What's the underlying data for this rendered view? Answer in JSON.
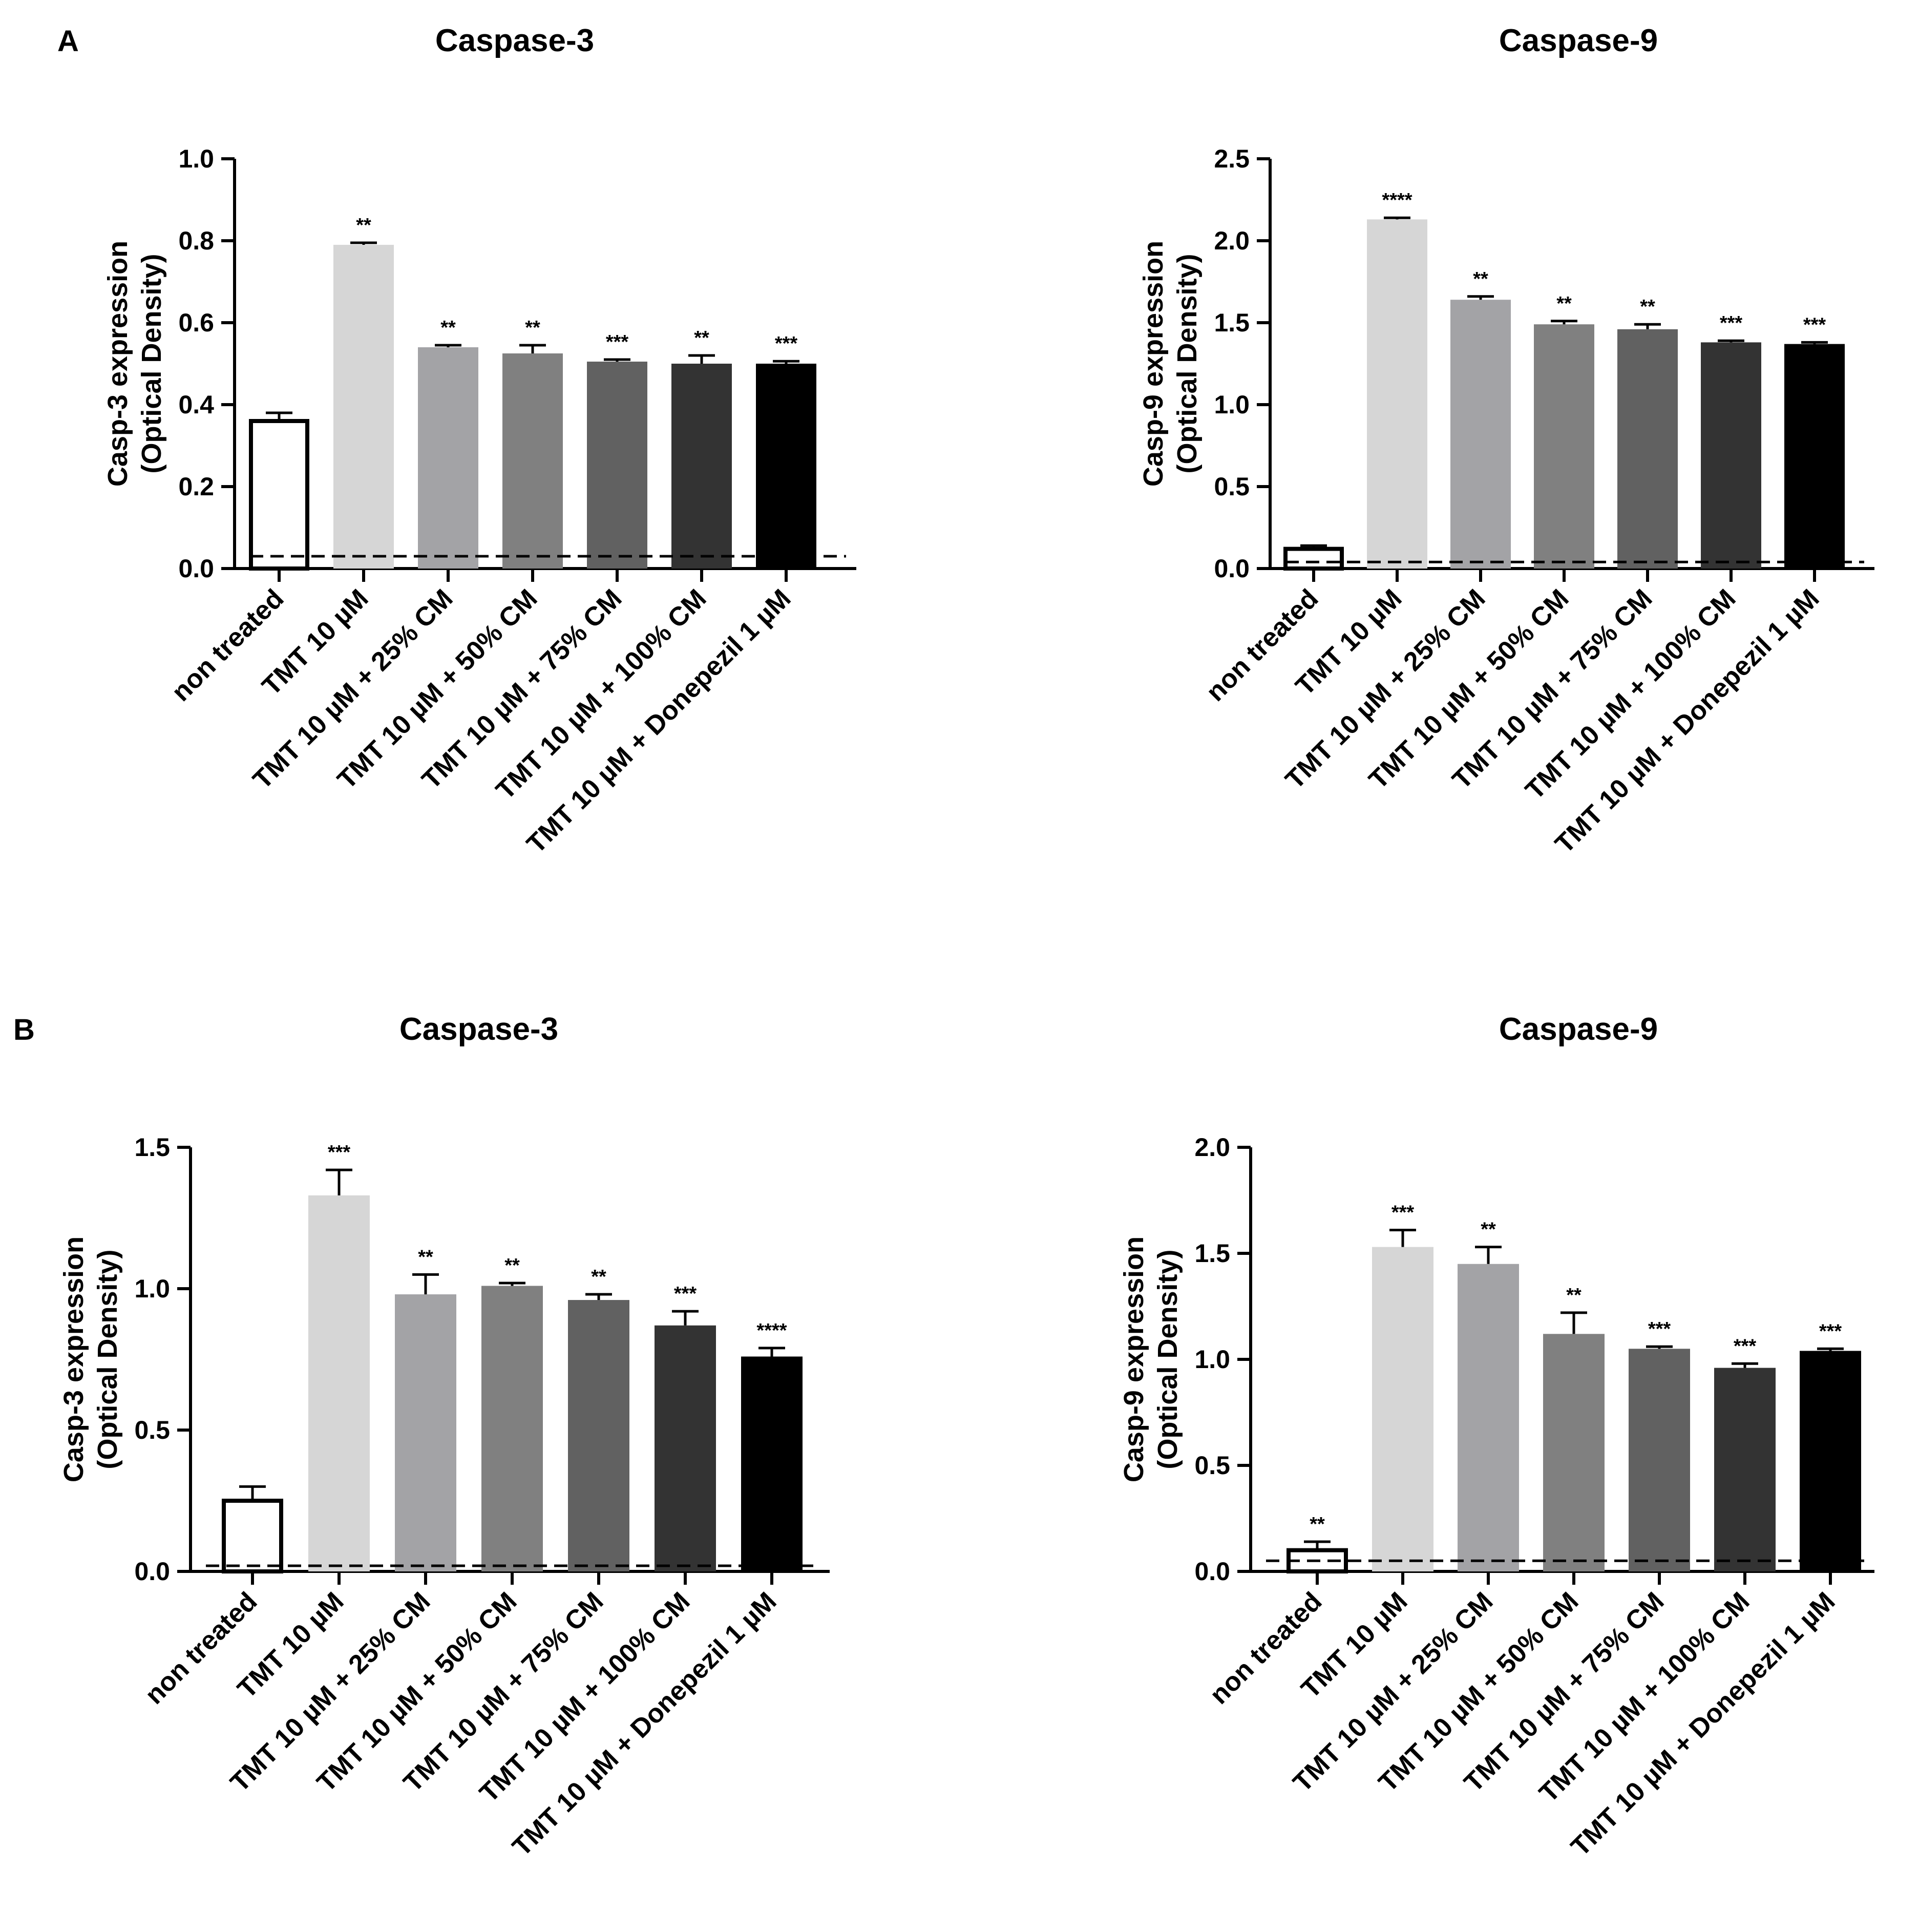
{
  "panels": {
    "a": "A",
    "b": "B"
  },
  "colors": {
    "bars": [
      "#ffffff",
      "#d6d6d6",
      "#a3a3a6",
      "#808080",
      "#616161",
      "#333333",
      "#000000"
    ],
    "axis": "#000000"
  },
  "chart_data": [
    {
      "type": "bar",
      "panel": "A",
      "title": "Caspase-3",
      "ylabel": [
        "Casp-3 expression",
        "(Optical Density)"
      ],
      "categories": [
        "non treated",
        "TMT 10 µM",
        "TMT 10 µM + 25% CM",
        "TMT 10 µM + 50% CM",
        "TMT 10 µM + 75% CM",
        "TMT 10 µM + 100% CM",
        "TMT 10 µM + Donepezil 1 µM"
      ],
      "values": [
        0.36,
        0.79,
        0.54,
        0.525,
        0.505,
        0.5,
        0.5
      ],
      "errors": [
        0.02,
        0.005,
        0.005,
        0.02,
        0.005,
        0.02,
        0.006
      ],
      "significance": [
        "",
        "**",
        "**",
        "**",
        "***",
        "**",
        "***"
      ],
      "ylim": [
        0,
        1.0
      ],
      "yticks": [
        0.0,
        0.2,
        0.4,
        0.6,
        0.8,
        1.0
      ],
      "ytick_labels": [
        "0.0",
        "0.2",
        "0.4",
        "0.6",
        "0.8",
        "1.0"
      ],
      "baseline": 0.03
    },
    {
      "type": "bar",
      "panel": "A",
      "title": "Caspase-9",
      "ylabel": [
        "Casp-9 expression",
        "(Optical Density)"
      ],
      "categories": [
        "non treated",
        "TMT 10 µM",
        "TMT 10 µM + 25% CM",
        "TMT 10 µM + 50% CM",
        "TMT 10 µM + 75% CM",
        "TMT 10 µM + 100% CM",
        "TMT 10 µM + Donepezil 1 µM"
      ],
      "values": [
        0.12,
        2.13,
        1.64,
        1.49,
        1.46,
        1.38,
        1.37
      ],
      "errors": [
        0.02,
        0.01,
        0.02,
        0.02,
        0.03,
        0.01,
        0.01
      ],
      "significance": [
        "",
        "****",
        "**",
        "**",
        "**",
        "***",
        "***"
      ],
      "ylim": [
        0,
        2.5
      ],
      "yticks": [
        0.0,
        0.5,
        1.0,
        1.5,
        2.0,
        2.5
      ],
      "ytick_labels": [
        "0.0",
        "0.5",
        "1.0",
        "1.5",
        "2.0",
        "2.5"
      ],
      "baseline": 0.04
    },
    {
      "type": "bar",
      "panel": "B",
      "title": "Caspase-3",
      "ylabel": [
        "Casp-3 expression",
        "(Optical Density)"
      ],
      "categories": [
        "non treated",
        "TMT 10 µM",
        "TMT 10 µM + 25% CM",
        "TMT 10 µM + 50% CM",
        "TMT 10 µM + 75% CM",
        "TMT 10 µM + 100% CM",
        "TMT 10 µM + Donepezil 1 µM"
      ],
      "values": [
        0.25,
        1.33,
        0.98,
        1.01,
        0.96,
        0.87,
        0.76
      ],
      "errors": [
        0.05,
        0.09,
        0.07,
        0.01,
        0.02,
        0.05,
        0.03
      ],
      "significance": [
        "",
        "***",
        "**",
        "**",
        "**",
        "***",
        "****"
      ],
      "ylim": [
        0,
        1.5
      ],
      "yticks": [
        0.0,
        0.5,
        1.0,
        1.5
      ],
      "ytick_labels": [
        "0.0",
        "0.5",
        "1.0",
        "1.5"
      ],
      "baseline": 0.02
    },
    {
      "type": "bar",
      "panel": "B",
      "title": "Caspase-9",
      "ylabel": [
        "Casp-9 expression",
        "(Optical Density)"
      ],
      "categories": [
        "non treated",
        "TMT 10 µM",
        "TMT 10 µM + 25% CM",
        "TMT 10 µM + 50% CM",
        "TMT 10 µM + 75% CM",
        "TMT 10 µM + 100% CM",
        "TMT 10 µM + Donepezil 1 µM"
      ],
      "values": [
        0.1,
        1.53,
        1.45,
        1.12,
        1.05,
        0.96,
        1.04
      ],
      "errors": [
        0.04,
        0.08,
        0.08,
        0.1,
        0.01,
        0.02,
        0.01
      ],
      "significance": [
        "**",
        "***",
        "**",
        "**",
        "***",
        "***",
        "***"
      ],
      "ylim": [
        0,
        2.0
      ],
      "yticks": [
        0.0,
        0.5,
        1.0,
        1.5,
        2.0
      ],
      "ytick_labels": [
        "0.0",
        "0.5",
        "1.0",
        "1.5",
        "2.0"
      ],
      "baseline": 0.05
    }
  ]
}
